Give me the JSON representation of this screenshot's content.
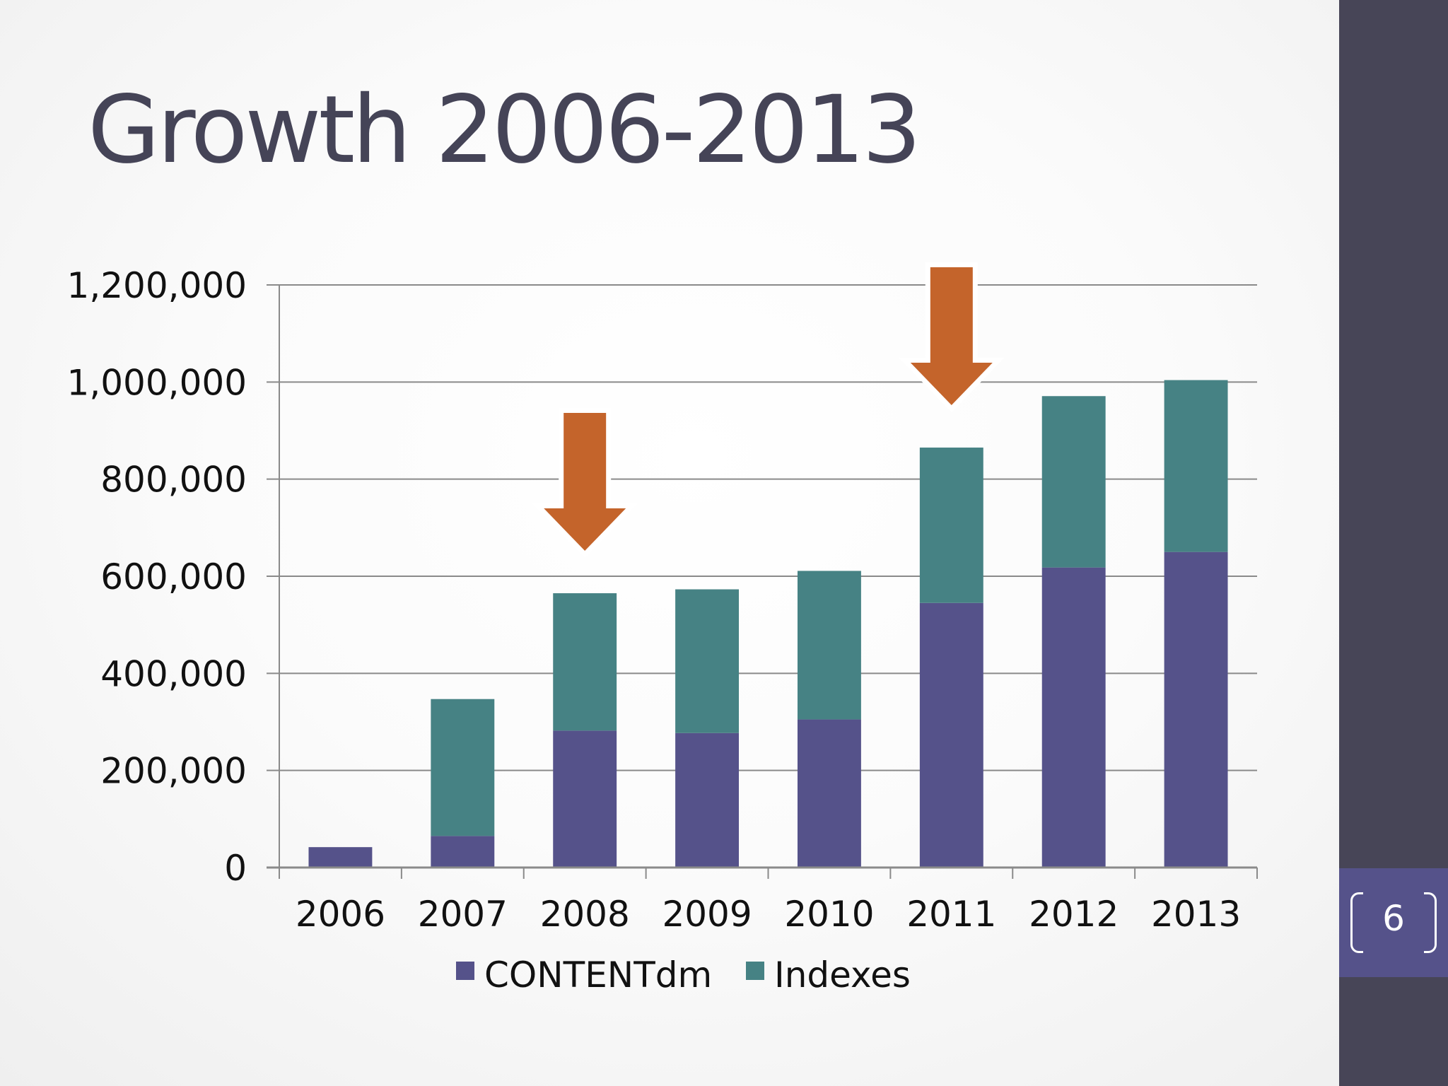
{
  "slide": {
    "title": "Growth 2006-2013",
    "page_number": "6"
  },
  "colors": {
    "contentdm": "#55528a",
    "indexes": "#468284",
    "arrow": "#c4642b",
    "sidebar": "#474557",
    "title_text": "#454457"
  },
  "chart_data": {
    "type": "bar",
    "stacked": true,
    "categories": [
      "2006",
      "2007",
      "2008",
      "2009",
      "2010",
      "2011",
      "2012",
      "2013"
    ],
    "series": [
      {
        "name": "CONTENTdm",
        "color": "#55528a",
        "values": [
          42000,
          65000,
          282000,
          277000,
          305000,
          545000,
          618000,
          650000
        ]
      },
      {
        "name": "Indexes",
        "color": "#468284",
        "values": [
          0,
          282000,
          283000,
          296000,
          306000,
          320000,
          353000,
          354000
        ]
      }
    ],
    "ylim": [
      0,
      1200000
    ],
    "yticks": [
      0,
      200000,
      400000,
      600000,
      800000,
      1000000,
      1200000
    ],
    "ytick_labels": [
      "0",
      "200,000",
      "400,000",
      "600,000",
      "800,000",
      "1,000,000",
      "1,200,000"
    ],
    "grid": true,
    "legend_position": "bottom",
    "annotations": [
      {
        "type": "down-arrow",
        "category": "2008",
        "color": "#c4642b"
      },
      {
        "type": "down-arrow",
        "category": "2011",
        "color": "#c4642b"
      }
    ]
  }
}
